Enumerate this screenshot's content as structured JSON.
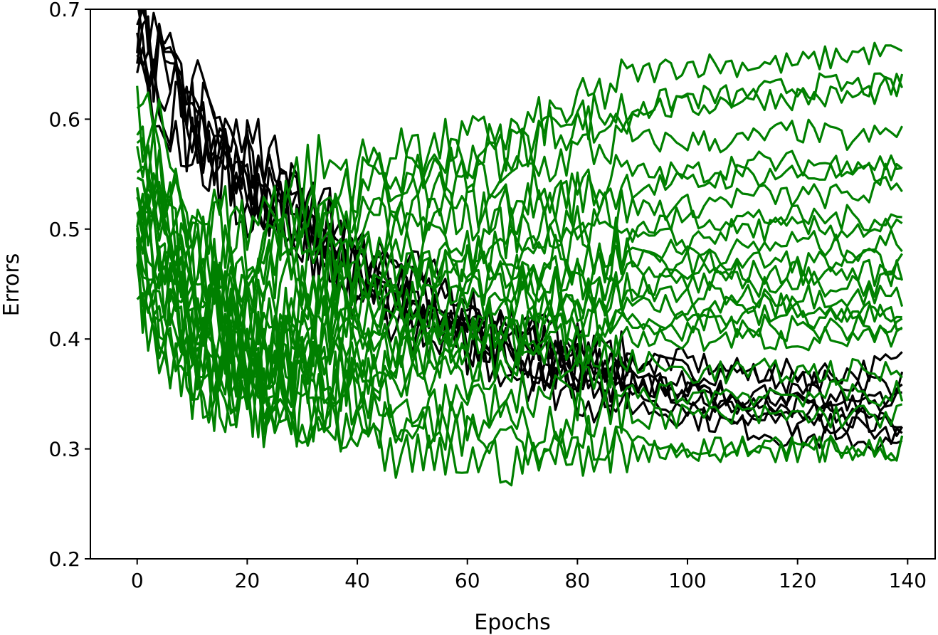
{
  "chart_data": {
    "type": "line",
    "title": "",
    "xlabel": "Epochs",
    "ylabel": "Errors",
    "xlim": [
      -8.5,
      145
    ],
    "ylim": [
      0.2,
      0.7
    ],
    "xticks": [
      0,
      20,
      40,
      60,
      80,
      100,
      120,
      140
    ],
    "yticks": [
      0.2,
      0.3,
      0.4,
      0.5,
      0.6,
      0.7
    ],
    "xtick_labels": [
      "0",
      "20",
      "40",
      "60",
      "80",
      "100",
      "120",
      "140"
    ],
    "ytick_labels": [
      "0.2",
      "0.3",
      "0.4",
      "0.5",
      "0.6",
      "0.7"
    ],
    "grid": false,
    "legend": "none",
    "series_colors": {
      "black": "#000000",
      "green": "#008000"
    },
    "x": [
      0,
      10,
      20,
      30,
      40,
      50,
      60,
      70,
      80,
      90,
      100,
      110,
      120,
      130,
      139
    ],
    "series": [
      {
        "color": "black",
        "values": [
          0.7,
          0.6,
          0.55,
          0.51,
          0.47,
          0.44,
          0.42,
          0.4,
          0.39,
          0.38,
          0.37,
          0.37,
          0.36,
          0.36,
          0.36
        ]
      },
      {
        "color": "black",
        "values": [
          0.68,
          0.59,
          0.54,
          0.5,
          0.46,
          0.43,
          0.41,
          0.39,
          0.37,
          0.36,
          0.35,
          0.35,
          0.34,
          0.34,
          0.34
        ]
      },
      {
        "color": "black",
        "values": [
          0.69,
          0.61,
          0.56,
          0.52,
          0.48,
          0.45,
          0.42,
          0.4,
          0.38,
          0.36,
          0.35,
          0.34,
          0.33,
          0.33,
          0.33
        ]
      },
      {
        "color": "black",
        "values": [
          0.67,
          0.58,
          0.53,
          0.49,
          0.45,
          0.42,
          0.4,
          0.38,
          0.36,
          0.35,
          0.34,
          0.33,
          0.32,
          0.32,
          0.31
        ]
      },
      {
        "color": "black",
        "values": [
          0.7,
          0.62,
          0.57,
          0.53,
          0.49,
          0.46,
          0.43,
          0.41,
          0.39,
          0.38,
          0.38,
          0.37,
          0.37,
          0.37,
          0.38
        ]
      },
      {
        "color": "black",
        "values": [
          0.66,
          0.57,
          0.52,
          0.48,
          0.44,
          0.41,
          0.39,
          0.37,
          0.35,
          0.34,
          0.33,
          0.32,
          0.31,
          0.31,
          0.3
        ]
      },
      {
        "color": "black",
        "values": [
          0.68,
          0.6,
          0.55,
          0.51,
          0.47,
          0.44,
          0.41,
          0.39,
          0.37,
          0.36,
          0.35,
          0.34,
          0.34,
          0.33,
          0.32
        ]
      },
      {
        "color": "black",
        "values": [
          0.69,
          0.59,
          0.54,
          0.5,
          0.46,
          0.43,
          0.4,
          0.38,
          0.37,
          0.36,
          0.36,
          0.35,
          0.35,
          0.34,
          0.35
        ]
      },
      {
        "color": "green",
        "values": [
          0.62,
          0.52,
          0.5,
          0.55,
          0.56,
          0.57,
          0.58,
          0.59,
          0.61,
          0.64,
          0.65,
          0.65,
          0.65,
          0.66,
          0.66
        ]
      },
      {
        "color": "green",
        "values": [
          0.6,
          0.5,
          0.48,
          0.53,
          0.54,
          0.56,
          0.57,
          0.58,
          0.6,
          0.61,
          0.62,
          0.62,
          0.63,
          0.63,
          0.63
        ]
      },
      {
        "color": "green",
        "values": [
          0.58,
          0.49,
          0.47,
          0.51,
          0.53,
          0.55,
          0.56,
          0.57,
          0.59,
          0.61,
          0.61,
          0.62,
          0.62,
          0.62,
          0.63
        ]
      },
      {
        "color": "green",
        "values": [
          0.57,
          0.48,
          0.46,
          0.5,
          0.51,
          0.53,
          0.54,
          0.55,
          0.57,
          0.58,
          0.58,
          0.58,
          0.59,
          0.58,
          0.59
        ]
      },
      {
        "color": "green",
        "values": [
          0.56,
          0.47,
          0.45,
          0.48,
          0.5,
          0.51,
          0.52,
          0.53,
          0.54,
          0.55,
          0.55,
          0.56,
          0.56,
          0.56,
          0.56
        ]
      },
      {
        "color": "green",
        "values": [
          0.55,
          0.46,
          0.44,
          0.47,
          0.48,
          0.5,
          0.51,
          0.52,
          0.53,
          0.54,
          0.54,
          0.55,
          0.55,
          0.55,
          0.55
        ]
      },
      {
        "color": "green",
        "values": [
          0.54,
          0.45,
          0.43,
          0.45,
          0.47,
          0.48,
          0.49,
          0.5,
          0.51,
          0.52,
          0.52,
          0.53,
          0.53,
          0.53,
          0.54
        ]
      },
      {
        "color": "green",
        "values": [
          0.53,
          0.44,
          0.42,
          0.44,
          0.46,
          0.47,
          0.48,
          0.49,
          0.5,
          0.5,
          0.51,
          0.51,
          0.51,
          0.51,
          0.51
        ]
      },
      {
        "color": "green",
        "values": [
          0.52,
          0.43,
          0.41,
          0.43,
          0.45,
          0.46,
          0.47,
          0.48,
          0.48,
          0.49,
          0.49,
          0.5,
          0.5,
          0.5,
          0.5
        ]
      },
      {
        "color": "green",
        "values": [
          0.51,
          0.42,
          0.4,
          0.42,
          0.44,
          0.45,
          0.46,
          0.47,
          0.47,
          0.48,
          0.48,
          0.48,
          0.49,
          0.48,
          0.49
        ]
      },
      {
        "color": "green",
        "values": [
          0.5,
          0.41,
          0.39,
          0.41,
          0.43,
          0.44,
          0.45,
          0.46,
          0.46,
          0.47,
          0.47,
          0.47,
          0.47,
          0.47,
          0.47
        ]
      },
      {
        "color": "green",
        "values": [
          0.49,
          0.41,
          0.38,
          0.4,
          0.42,
          0.43,
          0.44,
          0.45,
          0.45,
          0.46,
          0.46,
          0.46,
          0.46,
          0.46,
          0.46
        ]
      },
      {
        "color": "green",
        "values": [
          0.48,
          0.4,
          0.37,
          0.39,
          0.41,
          0.42,
          0.43,
          0.44,
          0.44,
          0.45,
          0.45,
          0.45,
          0.45,
          0.45,
          0.45
        ]
      },
      {
        "color": "green",
        "values": [
          0.47,
          0.39,
          0.37,
          0.38,
          0.4,
          0.41,
          0.42,
          0.43,
          0.43,
          0.44,
          0.44,
          0.44,
          0.44,
          0.44,
          0.44
        ]
      },
      {
        "color": "green",
        "values": [
          0.46,
          0.38,
          0.36,
          0.37,
          0.39,
          0.4,
          0.41,
          0.42,
          0.42,
          0.43,
          0.43,
          0.43,
          0.43,
          0.42,
          0.43
        ]
      },
      {
        "color": "green",
        "values": [
          0.45,
          0.37,
          0.35,
          0.36,
          0.38,
          0.39,
          0.4,
          0.41,
          0.41,
          0.42,
          0.42,
          0.42,
          0.42,
          0.42,
          0.42
        ]
      },
      {
        "color": "green",
        "values": [
          0.44,
          0.36,
          0.34,
          0.35,
          0.37,
          0.38,
          0.39,
          0.4,
          0.4,
          0.41,
          0.41,
          0.41,
          0.41,
          0.41,
          0.41
        ]
      },
      {
        "color": "green",
        "values": [
          0.43,
          0.35,
          0.34,
          0.34,
          0.36,
          0.37,
          0.38,
          0.39,
          0.39,
          0.4,
          0.4,
          0.4,
          0.4,
          0.4,
          0.4
        ]
      },
      {
        "color": "green",
        "values": [
          0.55,
          0.45,
          0.4,
          0.38,
          0.37,
          0.37,
          0.37,
          0.38,
          0.38,
          0.38,
          0.37,
          0.37,
          0.37,
          0.37,
          0.37
        ]
      },
      {
        "color": "green",
        "values": [
          0.5,
          0.4,
          0.36,
          0.34,
          0.33,
          0.32,
          0.31,
          0.31,
          0.31,
          0.31,
          0.3,
          0.3,
          0.3,
          0.3,
          0.3
        ]
      },
      {
        "color": "green",
        "values": [
          0.48,
          0.38,
          0.34,
          0.32,
          0.3,
          0.29,
          0.29,
          0.29,
          0.3,
          0.3,
          0.3,
          0.3,
          0.3,
          0.3,
          0.3
        ]
      },
      {
        "color": "green",
        "values": [
          0.52,
          0.42,
          0.38,
          0.35,
          0.33,
          0.32,
          0.32,
          0.32,
          0.33,
          0.33,
          0.33,
          0.33,
          0.33,
          0.33,
          0.33
        ]
      },
      {
        "color": "green",
        "values": [
          0.54,
          0.44,
          0.39,
          0.37,
          0.35,
          0.34,
          0.34,
          0.35,
          0.35,
          0.35,
          0.35,
          0.35,
          0.35,
          0.35,
          0.35
        ]
      }
    ]
  }
}
